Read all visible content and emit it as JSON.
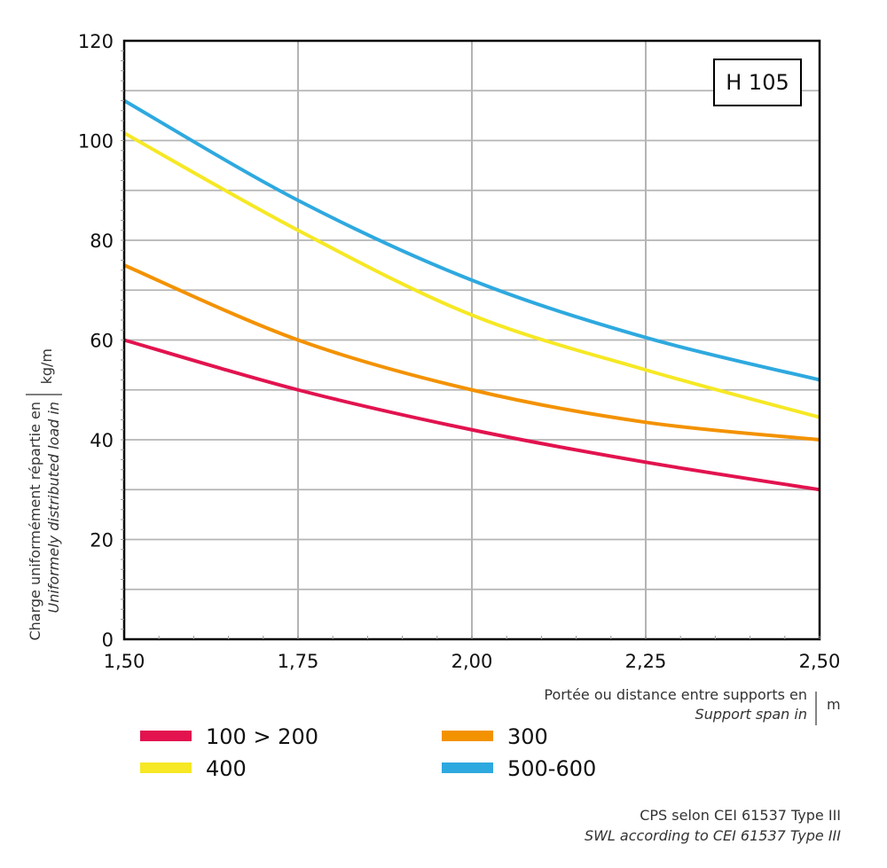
{
  "chart_data": {
    "type": "line",
    "badge": "H 105",
    "x": [
      1.5,
      1.75,
      2.0,
      2.25,
      2.5
    ],
    "xticks": [
      "1,50",
      "1,75",
      "2,00",
      "2,25",
      "2,50"
    ],
    "yticks": [
      "0",
      "20",
      "40",
      "60",
      "80",
      "100",
      "120"
    ],
    "xlim": [
      1.5,
      2.5
    ],
    "ylim": [
      0,
      120
    ],
    "grid": true,
    "ylabel_fr": "Charge uniformément répartie en",
    "ylabel_en": "Uniformely distributed load in",
    "yunit": "kg/m",
    "xlabel_fr": "Portée ou distance entre supports en",
    "xlabel_en": "Support span in",
    "xunit": "m",
    "legend_placement": "bottom",
    "series": [
      {
        "name": "100 > 200",
        "color": "#e2134f",
        "values": [
          60,
          50,
          42,
          35.5,
          30
        ]
      },
      {
        "name": "300",
        "color": "#f39200",
        "values": [
          75,
          60,
          50,
          43.5,
          40
        ]
      },
      {
        "name": "400",
        "color": "#f6e824",
        "values": [
          101.5,
          82,
          65,
          54,
          44.5
        ]
      },
      {
        "name": "500-600",
        "color": "#2ea9df",
        "values": [
          108,
          88,
          72,
          60.5,
          52
        ]
      }
    ],
    "footnote_fr": "CPS selon CEI 61537 Type III",
    "footnote_en": "SWL according to CEI 61537 Type III"
  }
}
